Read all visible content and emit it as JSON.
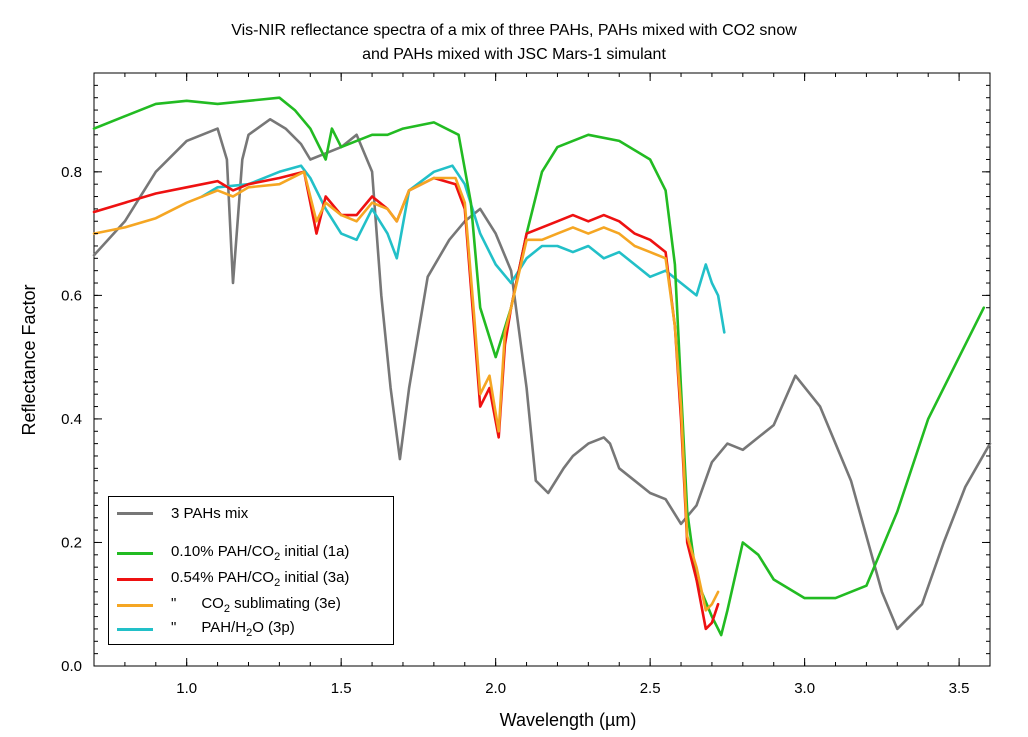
{
  "chart_data": {
    "type": "line",
    "title_line1": "Vis-NIR reflectance spectra of a mix of three PAHs, PAHs mixed with CO2 snow",
    "title_line2": "and PAHs mixed with JSC Mars-1 simulant",
    "xlabel": "Wavelength (µm)",
    "ylabel": "Reflectance Factor",
    "xlim": [
      0.7,
      3.6
    ],
    "ylim": [
      0.0,
      0.96
    ],
    "xticks": [
      "1.0",
      "1.5",
      "2.0",
      "2.5",
      "3.0",
      "3.5"
    ],
    "yticks": [
      "0.0",
      "0.2",
      "0.4",
      "0.6",
      "0.8"
    ],
    "legend_position": "lower-left",
    "series": [
      {
        "name": "3 PAHs mix",
        "color": "#777777",
        "x": [
          0.7,
          0.8,
          0.9,
          1.0,
          1.1,
          1.13,
          1.15,
          1.18,
          1.2,
          1.27,
          1.32,
          1.37,
          1.4,
          1.45,
          1.5,
          1.55,
          1.6,
          1.63,
          1.66,
          1.69,
          1.72,
          1.78,
          1.85,
          1.9,
          1.95,
          2.0,
          2.05,
          2.1,
          2.13,
          2.17,
          2.22,
          2.25,
          2.3,
          2.35,
          2.37,
          2.4,
          2.45,
          2.5,
          2.55,
          2.6,
          2.65,
          2.7,
          2.75,
          2.8,
          2.85,
          2.9,
          2.97,
          3.05,
          3.15,
          3.25,
          3.3,
          3.38,
          3.45,
          3.52,
          3.6
        ],
        "y": [
          0.665,
          0.72,
          0.8,
          0.85,
          0.87,
          0.82,
          0.62,
          0.82,
          0.86,
          0.885,
          0.87,
          0.845,
          0.82,
          0.83,
          0.84,
          0.86,
          0.8,
          0.6,
          0.45,
          0.335,
          0.45,
          0.63,
          0.69,
          0.72,
          0.74,
          0.7,
          0.64,
          0.45,
          0.3,
          0.28,
          0.32,
          0.34,
          0.36,
          0.37,
          0.36,
          0.32,
          0.3,
          0.28,
          0.27,
          0.23,
          0.26,
          0.33,
          0.36,
          0.35,
          0.37,
          0.39,
          0.47,
          0.42,
          0.3,
          0.12,
          0.06,
          0.1,
          0.2,
          0.29,
          0.36
        ]
      },
      {
        "name": "0.10% PAH/CO2 initial (1a)",
        "legend_main": "0.10% PAH/CO",
        "legend_sub": "2",
        "legend_tail": " initial (1a)",
        "color": "#22bb22",
        "x": [
          0.7,
          0.8,
          0.9,
          1.0,
          1.1,
          1.2,
          1.3,
          1.35,
          1.4,
          1.45,
          1.47,
          1.5,
          1.55,
          1.6,
          1.65,
          1.7,
          1.8,
          1.88,
          1.92,
          1.95,
          2.0,
          2.05,
          2.1,
          2.15,
          2.2,
          2.3,
          2.4,
          2.5,
          2.55,
          2.58,
          2.6,
          2.62,
          2.65,
          2.7,
          2.73,
          2.75,
          2.8,
          2.85,
          2.9,
          3.0,
          3.1,
          3.2,
          3.3,
          3.4,
          3.5,
          3.58
        ],
        "y": [
          0.87,
          0.89,
          0.91,
          0.915,
          0.91,
          0.915,
          0.92,
          0.9,
          0.87,
          0.82,
          0.87,
          0.84,
          0.85,
          0.86,
          0.86,
          0.87,
          0.88,
          0.86,
          0.75,
          0.58,
          0.5,
          0.58,
          0.7,
          0.8,
          0.84,
          0.86,
          0.85,
          0.82,
          0.77,
          0.65,
          0.45,
          0.25,
          0.14,
          0.08,
          0.05,
          0.09,
          0.2,
          0.18,
          0.14,
          0.11,
          0.11,
          0.13,
          0.25,
          0.4,
          0.5,
          0.58
        ]
      },
      {
        "name": "0.54% PAH/CO2 initial (3a)",
        "legend_main": "0.54% PAH/CO",
        "legend_sub": "2",
        "legend_tail": " initial (3a)",
        "color": "#ee1111",
        "x": [
          0.7,
          0.8,
          0.9,
          1.0,
          1.1,
          1.15,
          1.2,
          1.3,
          1.38,
          1.42,
          1.45,
          1.5,
          1.55,
          1.6,
          1.65,
          1.68,
          1.72,
          1.8,
          1.87,
          1.9,
          1.93,
          1.95,
          1.98,
          2.01,
          2.03,
          2.05,
          2.1,
          2.15,
          2.2,
          2.25,
          2.3,
          2.35,
          2.4,
          2.45,
          2.5,
          2.55,
          2.58,
          2.6,
          2.62,
          2.65,
          2.68,
          2.7,
          2.72
        ],
        "y": [
          0.735,
          0.75,
          0.765,
          0.775,
          0.785,
          0.77,
          0.78,
          0.79,
          0.8,
          0.7,
          0.76,
          0.73,
          0.73,
          0.76,
          0.74,
          0.72,
          0.77,
          0.79,
          0.78,
          0.74,
          0.55,
          0.42,
          0.45,
          0.37,
          0.52,
          0.58,
          0.7,
          0.71,
          0.72,
          0.73,
          0.72,
          0.73,
          0.72,
          0.7,
          0.69,
          0.67,
          0.55,
          0.4,
          0.2,
          0.14,
          0.06,
          0.07,
          0.1
        ]
      },
      {
        "name": "\" CO2 sublimating (3e)",
        "legend_main": "\"      CO",
        "legend_sub": "2",
        "legend_tail": " sublimating (3e)",
        "color": "#f5a623",
        "x": [
          0.7,
          0.8,
          0.9,
          1.0,
          1.1,
          1.15,
          1.2,
          1.3,
          1.38,
          1.42,
          1.45,
          1.5,
          1.55,
          1.6,
          1.65,
          1.68,
          1.72,
          1.8,
          1.87,
          1.9,
          1.93,
          1.95,
          1.98,
          2.01,
          2.03,
          2.05,
          2.1,
          2.15,
          2.2,
          2.25,
          2.3,
          2.35,
          2.4,
          2.45,
          2.5,
          2.55,
          2.58,
          2.6,
          2.62,
          2.65,
          2.68,
          2.7,
          2.72
        ],
        "y": [
          0.7,
          0.71,
          0.725,
          0.75,
          0.77,
          0.76,
          0.775,
          0.78,
          0.8,
          0.72,
          0.75,
          0.73,
          0.72,
          0.75,
          0.74,
          0.72,
          0.77,
          0.79,
          0.79,
          0.75,
          0.57,
          0.44,
          0.47,
          0.38,
          0.54,
          0.58,
          0.69,
          0.69,
          0.7,
          0.71,
          0.7,
          0.71,
          0.7,
          0.68,
          0.67,
          0.66,
          0.55,
          0.42,
          0.21,
          0.16,
          0.09,
          0.1,
          0.12
        ]
      },
      {
        "name": "\" PAH/H2O (3p)",
        "legend_main": "\"      PAH/H",
        "legend_sub": "2",
        "legend_tail": "O (3p)",
        "color": "#22c0c8",
        "x": [
          1.05,
          1.1,
          1.2,
          1.3,
          1.37,
          1.4,
          1.45,
          1.5,
          1.55,
          1.6,
          1.65,
          1.68,
          1.72,
          1.8,
          1.86,
          1.9,
          1.95,
          2.0,
          2.05,
          2.1,
          2.15,
          2.2,
          2.25,
          2.3,
          2.35,
          2.4,
          2.45,
          2.5,
          2.55,
          2.6,
          2.65,
          2.68,
          2.7,
          2.72,
          2.74
        ],
        "y": [
          0.76,
          0.775,
          0.78,
          0.8,
          0.81,
          0.79,
          0.74,
          0.7,
          0.69,
          0.74,
          0.7,
          0.66,
          0.77,
          0.8,
          0.81,
          0.78,
          0.7,
          0.65,
          0.62,
          0.66,
          0.68,
          0.68,
          0.67,
          0.68,
          0.66,
          0.67,
          0.65,
          0.63,
          0.64,
          0.62,
          0.6,
          0.65,
          0.62,
          0.6,
          0.54
        ]
      }
    ]
  }
}
